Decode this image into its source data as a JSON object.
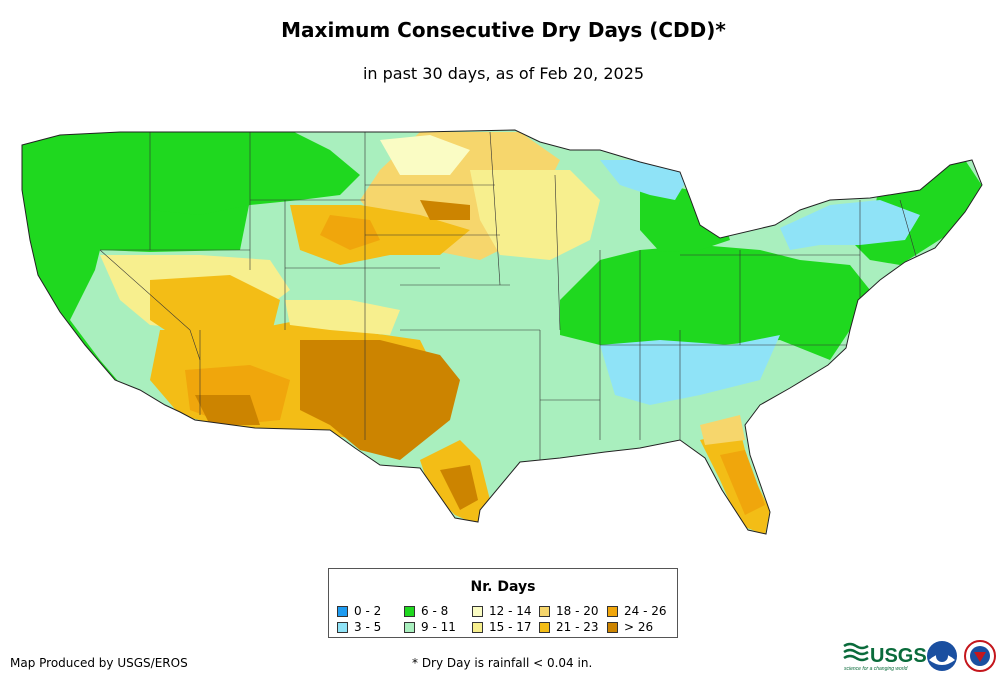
{
  "title": "Maximum Consecutive Dry Days (CDD)*",
  "subtitle": "in past 30 days, as of Feb 20, 2025",
  "legend": {
    "title": "Nr. Days",
    "items": [
      {
        "label": "0 - 2",
        "color": "#1e9bf0"
      },
      {
        "label": "3 - 5",
        "color": "#8fe3f7"
      },
      {
        "label": "6 - 8",
        "color": "#1fd81f"
      },
      {
        "label": "9 - 11",
        "color": "#a9efbe"
      },
      {
        "label": "12 - 14",
        "color": "#fafcc4"
      },
      {
        "label": "15 - 17",
        "color": "#f7ef8e"
      },
      {
        "label": "18 - 20",
        "color": "#f6d66c"
      },
      {
        "label": "21 - 23",
        "color": "#f3bd16"
      },
      {
        "label": "24 - 26",
        "color": "#f0a60c"
      },
      {
        "label": "> 26",
        "color": "#cc8400"
      }
    ]
  },
  "credit": "Map Produced by USGS/EROS",
  "footnote": "* Dry Day is rainfall < 0.04 in.",
  "logos": {
    "usgs": "USGS",
    "usgs_tagline": "science for a changing world"
  }
}
